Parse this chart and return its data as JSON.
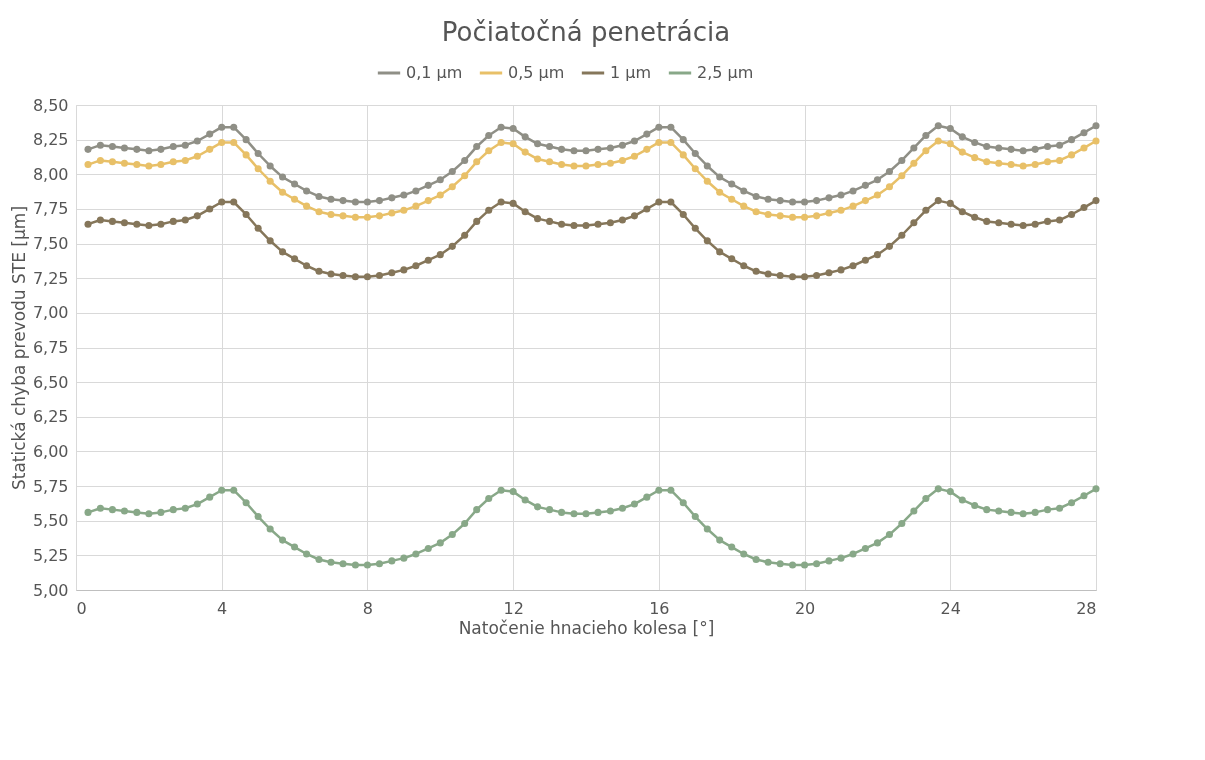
{
  "chart_data": {
    "type": "line",
    "title": "Počiatočná penetrácia",
    "xlabel": "Natočenie hnacieho kolesa [°]",
    "ylabel": "Statická chyba prevodu STE [µm]",
    "x": [
      0.33,
      0.67,
      1,
      1.33,
      1.67,
      2,
      2.33,
      2.67,
      3,
      3.33,
      3.67,
      4,
      4.33,
      4.67,
      5,
      5.33,
      5.67,
      6,
      6.33,
      6.67,
      7,
      7.33,
      7.67,
      8,
      8.33,
      8.67,
      9,
      9.33,
      9.67,
      10,
      10.33,
      10.67,
      11,
      11.33,
      11.67,
      12,
      12.33,
      12.67,
      13,
      13.33,
      13.67,
      14,
      14.33,
      14.67,
      15,
      15.33,
      15.67,
      16,
      16.33,
      16.67,
      17,
      17.33,
      17.67,
      18,
      18.33,
      18.67,
      19,
      19.33,
      19.67,
      20,
      20.33,
      20.67,
      21,
      21.33,
      21.67,
      22,
      22.33,
      22.67,
      23,
      23.33,
      23.67,
      24,
      24.33,
      24.67,
      25,
      25.33,
      25.67,
      26,
      26.33,
      26.67,
      27,
      27.33,
      27.67,
      28
    ],
    "series": [
      {
        "name": "0,1 µm",
        "color": "#8f8f86",
        "values": [
          8.18,
          8.21,
          8.2,
          8.19,
          8.18,
          8.17,
          8.18,
          8.2,
          8.21,
          8.24,
          8.29,
          8.34,
          8.34,
          8.25,
          8.15,
          8.06,
          7.98,
          7.93,
          7.88,
          7.84,
          7.82,
          7.81,
          7.8,
          7.8,
          7.81,
          7.83,
          7.85,
          7.88,
          7.92,
          7.96,
          8.02,
          8.1,
          8.2,
          8.28,
          8.34,
          8.33,
          8.27,
          8.22,
          8.2,
          8.18,
          8.17,
          8.17,
          8.18,
          8.19,
          8.21,
          8.24,
          8.29,
          8.34,
          8.34,
          8.25,
          8.15,
          8.06,
          7.98,
          7.93,
          7.88,
          7.84,
          7.82,
          7.81,
          7.8,
          7.8,
          7.81,
          7.83,
          7.85,
          7.88,
          7.92,
          7.96,
          8.02,
          8.1,
          8.19,
          8.28,
          8.35,
          8.33,
          8.27,
          8.23,
          8.2,
          8.19,
          8.18,
          8.17,
          8.18,
          8.2,
          8.21,
          8.25,
          8.3,
          8.35
        ]
      },
      {
        "name": "0,5 µm",
        "color": "#e8c068",
        "values": [
          8.07,
          8.1,
          8.09,
          8.08,
          8.07,
          8.06,
          8.07,
          8.09,
          8.1,
          8.13,
          8.18,
          8.23,
          8.23,
          8.14,
          8.04,
          7.95,
          7.87,
          7.82,
          7.77,
          7.73,
          7.71,
          7.7,
          7.69,
          7.69,
          7.7,
          7.72,
          7.74,
          7.77,
          7.81,
          7.85,
          7.91,
          7.99,
          8.09,
          8.17,
          8.23,
          8.22,
          8.16,
          8.11,
          8.09,
          8.07,
          8.06,
          8.06,
          8.07,
          8.08,
          8.1,
          8.13,
          8.18,
          8.23,
          8.23,
          8.14,
          8.04,
          7.95,
          7.87,
          7.82,
          7.77,
          7.73,
          7.71,
          7.7,
          7.69,
          7.69,
          7.7,
          7.72,
          7.74,
          7.77,
          7.81,
          7.85,
          7.91,
          7.99,
          8.08,
          8.17,
          8.24,
          8.22,
          8.16,
          8.12,
          8.09,
          8.08,
          8.07,
          8.06,
          8.07,
          8.09,
          8.1,
          8.14,
          8.19,
          8.24
        ]
      },
      {
        "name": "1 µm",
        "color": "#85765a",
        "values": [
          7.64,
          7.67,
          7.66,
          7.65,
          7.64,
          7.63,
          7.64,
          7.66,
          7.67,
          7.7,
          7.75,
          7.8,
          7.8,
          7.71,
          7.61,
          7.52,
          7.44,
          7.39,
          7.34,
          7.3,
          7.28,
          7.27,
          7.26,
          7.26,
          7.27,
          7.29,
          7.31,
          7.34,
          7.38,
          7.42,
          7.48,
          7.56,
          7.66,
          7.74,
          7.8,
          7.79,
          7.73,
          7.68,
          7.66,
          7.64,
          7.63,
          7.63,
          7.64,
          7.65,
          7.67,
          7.7,
          7.75,
          7.8,
          7.8,
          7.71,
          7.61,
          7.52,
          7.44,
          7.39,
          7.34,
          7.3,
          7.28,
          7.27,
          7.26,
          7.26,
          7.27,
          7.29,
          7.31,
          7.34,
          7.38,
          7.42,
          7.48,
          7.56,
          7.65,
          7.74,
          7.81,
          7.79,
          7.73,
          7.69,
          7.66,
          7.65,
          7.64,
          7.63,
          7.64,
          7.66,
          7.67,
          7.71,
          7.76,
          7.81
        ]
      },
      {
        "name": "2,5 µm",
        "color": "#88a888",
        "values": [
          5.56,
          5.59,
          5.58,
          5.57,
          5.56,
          5.55,
          5.56,
          5.58,
          5.59,
          5.62,
          5.67,
          5.72,
          5.72,
          5.63,
          5.53,
          5.44,
          5.36,
          5.31,
          5.26,
          5.22,
          5.2,
          5.19,
          5.18,
          5.18,
          5.19,
          5.21,
          5.23,
          5.26,
          5.3,
          5.34,
          5.4,
          5.48,
          5.58,
          5.66,
          5.72,
          5.71,
          5.65,
          5.6,
          5.58,
          5.56,
          5.55,
          5.55,
          5.56,
          5.57,
          5.59,
          5.62,
          5.67,
          5.72,
          5.72,
          5.63,
          5.53,
          5.44,
          5.36,
          5.31,
          5.26,
          5.22,
          5.2,
          5.19,
          5.18,
          5.18,
          5.19,
          5.21,
          5.23,
          5.26,
          5.3,
          5.34,
          5.4,
          5.48,
          5.57,
          5.66,
          5.73,
          5.71,
          5.65,
          5.61,
          5.58,
          5.57,
          5.56,
          5.55,
          5.56,
          5.58,
          5.59,
          5.63,
          5.68,
          5.73
        ]
      }
    ],
    "xlim": [
      0,
      28
    ],
    "xticks": [
      0,
      4,
      8,
      12,
      16,
      20,
      24,
      28
    ],
    "ylim": [
      5,
      8.5
    ],
    "yticks": [
      {
        "value": 5,
        "label": "5,00"
      },
      {
        "value": 5.25,
        "label": "5,25"
      },
      {
        "value": 5.5,
        "label": "5,50"
      },
      {
        "value": 5.75,
        "label": "5,75"
      },
      {
        "value": 6,
        "label": "6,00"
      },
      {
        "value": 6.25,
        "label": "6,25"
      },
      {
        "value": 6.5,
        "label": "6,50"
      },
      {
        "value": 6.75,
        "label": "6,75"
      },
      {
        "value": 7,
        "label": "7,00"
      },
      {
        "value": 7.25,
        "label": "7,25"
      },
      {
        "value": 7.5,
        "label": "7,50"
      },
      {
        "value": 7.75,
        "label": "7,75"
      },
      {
        "value": 8,
        "label": "8,00"
      },
      {
        "value": 8.25,
        "label": "8,25"
      },
      {
        "value": 8.5,
        "label": "8,50"
      }
    ],
    "grid": true,
    "legend": "top",
    "marker": "circle",
    "line_style": "solid"
  }
}
